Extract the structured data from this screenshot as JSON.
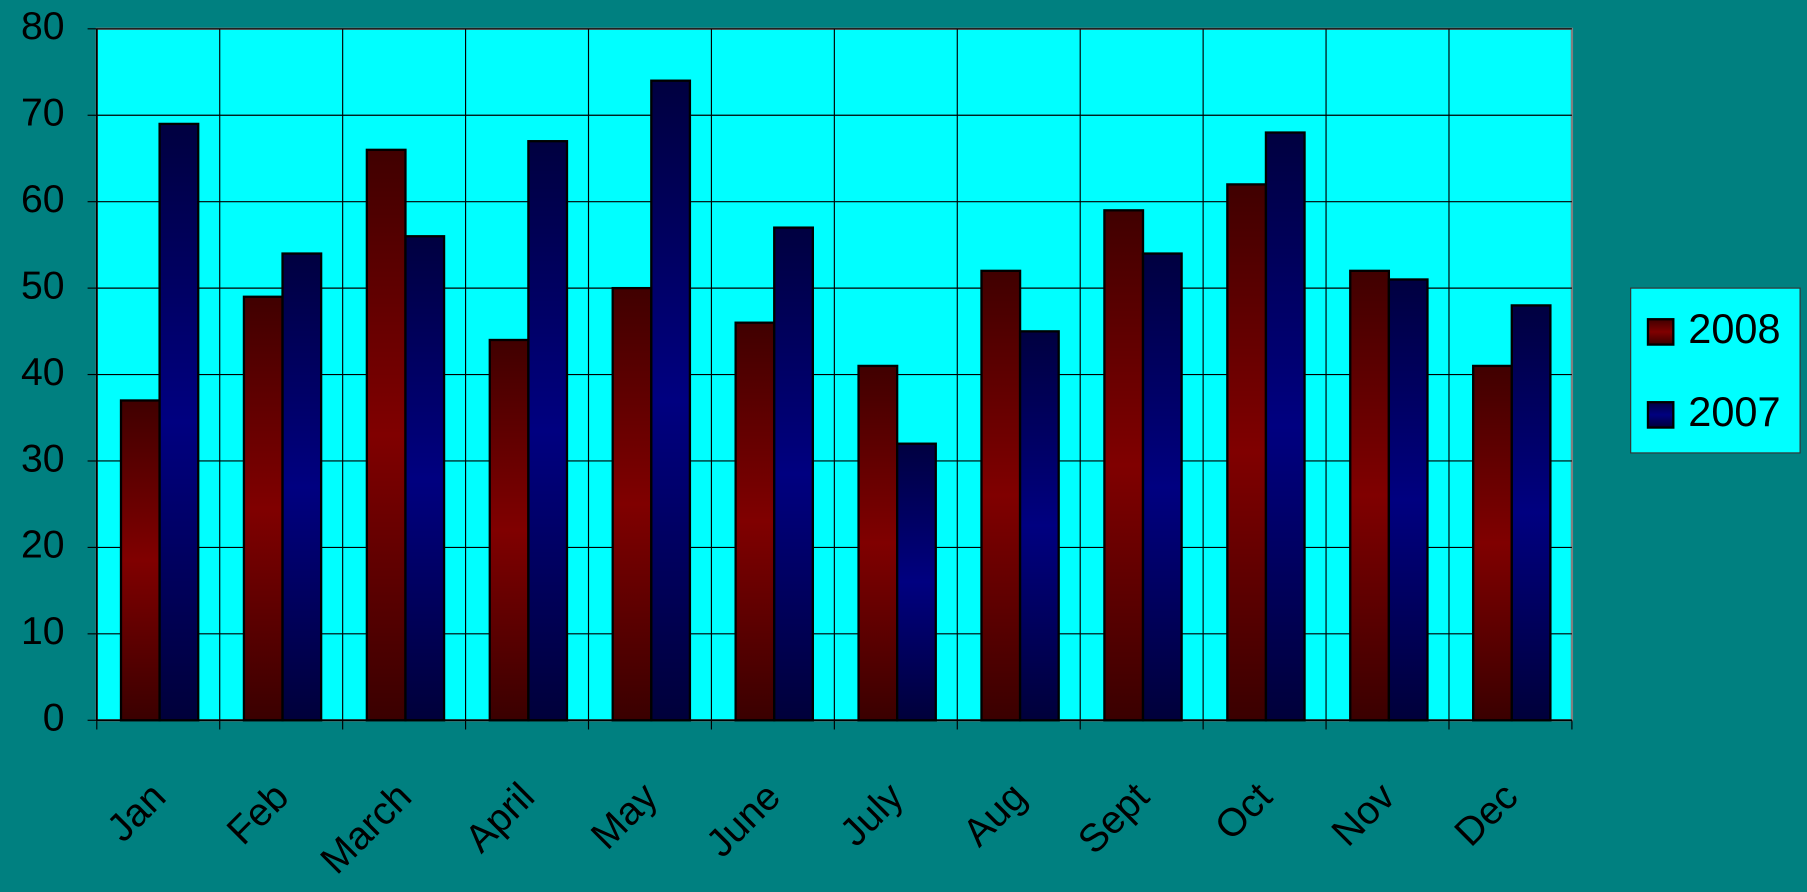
{
  "chart_data": {
    "type": "bar",
    "categories": [
      "Jan",
      "Feb",
      "March",
      "April",
      "May",
      "June",
      "July",
      "Aug",
      "Sept",
      "Oct",
      "Nov",
      "Dec"
    ],
    "series": [
      {
        "name": "2008",
        "color": "#800000",
        "values": [
          37,
          49,
          66,
          44,
          50,
          46,
          41,
          52,
          59,
          62,
          52,
          41
        ]
      },
      {
        "name": "2007",
        "color": "#000080",
        "values": [
          69,
          54,
          56,
          67,
          74,
          57,
          32,
          45,
          54,
          68,
          51,
          48
        ]
      }
    ],
    "ylim": [
      0,
      80
    ],
    "yticks": [
      0,
      10,
      20,
      30,
      40,
      50,
      60,
      70,
      80
    ],
    "grid": true,
    "legend": "right"
  }
}
